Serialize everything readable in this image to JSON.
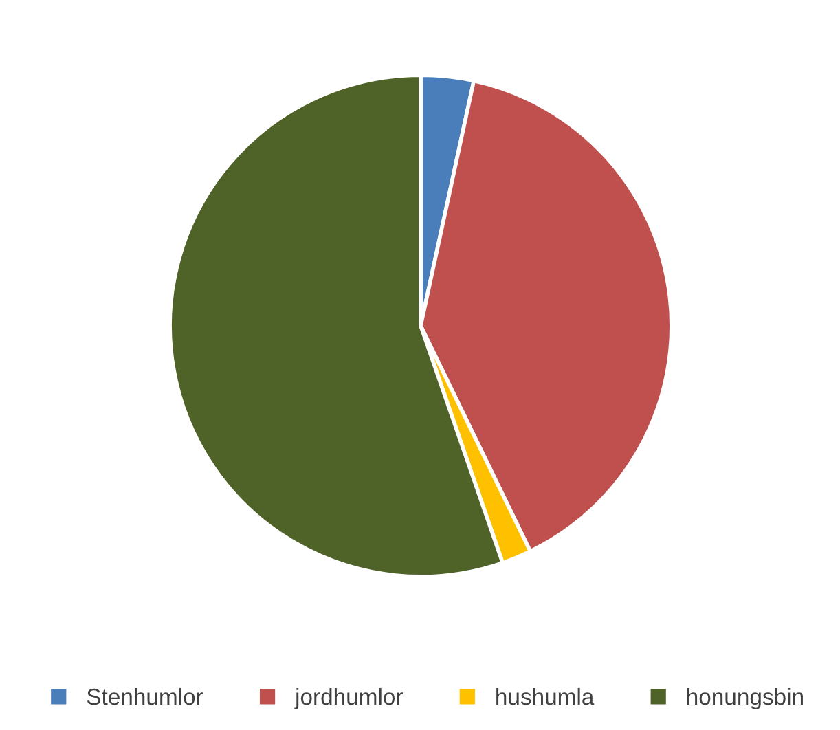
{
  "chart_data": {
    "type": "pie",
    "categories": [
      "Stenhumlor",
      "jordhumlor",
      "hushumla",
      "honungsbin"
    ],
    "values": [
      3.4,
      39.4,
      1.9,
      55.3
    ],
    "colors": [
      "#4a7ebb",
      "#c0504d",
      "#ffc000",
      "#4f6228"
    ],
    "legend": "bottom"
  }
}
